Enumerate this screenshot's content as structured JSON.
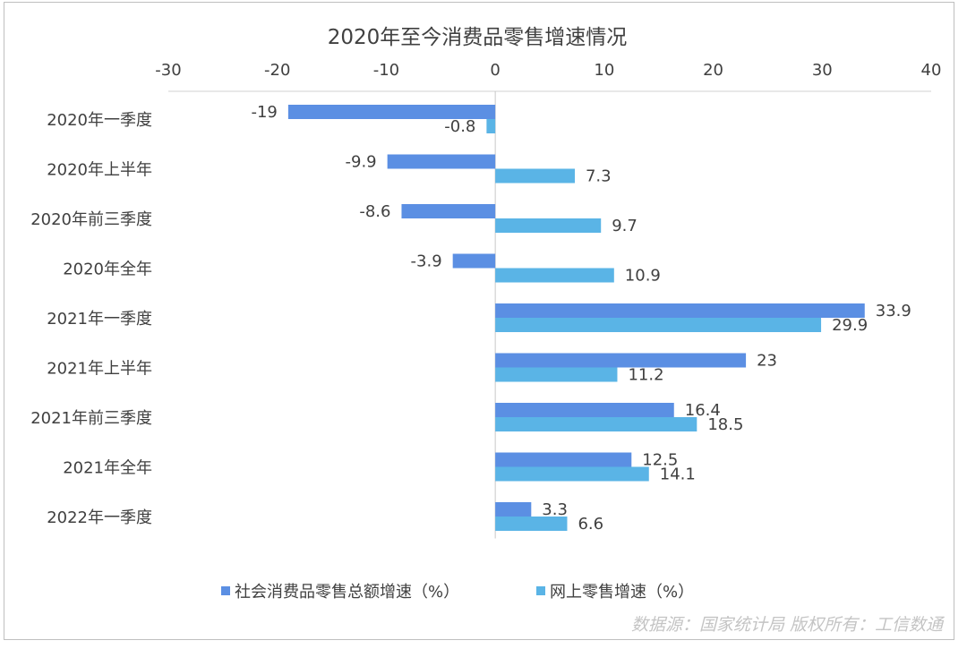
{
  "chart_data": {
    "type": "bar",
    "orientation": "horizontal",
    "title": "2020年至今消费品零售增速情况",
    "categories": [
      "2020年一季度",
      "2020年上半年",
      "2020年前三季度",
      "2020年全年",
      "2021年一季度",
      "2021年上半年",
      "2021年前三季度",
      "2021年全年",
      "2022年一季度"
    ],
    "series": [
      {
        "name": "社会消费品零售总额增速（%）",
        "color": "#5b8fe3",
        "values": [
          -19,
          -9.9,
          -8.6,
          -3.9,
          33.9,
          23,
          16.4,
          12.5,
          3.3
        ]
      },
      {
        "name": "网上零售增速（%）",
        "color": "#5ab4e6",
        "values": [
          -0.8,
          7.3,
          9.7,
          10.9,
          29.9,
          11.2,
          18.5,
          14.1,
          6.6
        ]
      }
    ],
    "xlim": [
      -30,
      40
    ],
    "xticks": [
      -30,
      -20,
      -10,
      0,
      10,
      20,
      30,
      40
    ],
    "axis_position": "top",
    "legend_position": "bottom",
    "grid": false
  },
  "source_note": "数据源：国家统计局 版权所有：工信数通"
}
